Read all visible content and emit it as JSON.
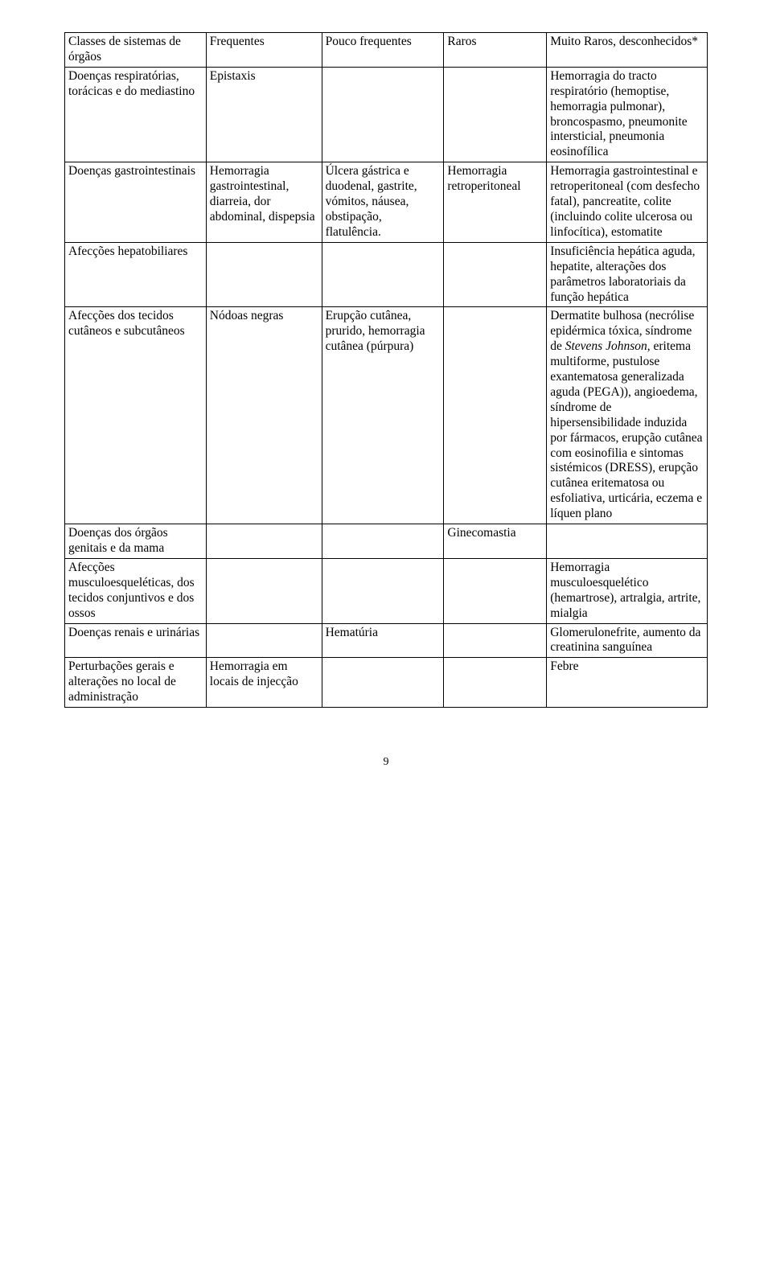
{
  "table": {
    "columns": [
      "Classes de sistemas de órgãos",
      "Frequentes",
      "Pouco frequentes",
      "Raros",
      "Muito Raros, desconhecidos*"
    ],
    "rows": [
      {
        "c0": "Doenças respiratórias, torácicas e do mediastino",
        "c1": "Epistaxis",
        "c2": "",
        "c3": "",
        "c4": "Hemorragia do tracto respiratório (hemoptise, hemorragia pulmonar), broncospasmo, pneumonite intersticial, pneumonia eosinofílica"
      },
      {
        "c0": "Doenças gastrointestinais",
        "c1": "Hemorragia gastrointestinal, diarreia, dor abdominal, dispepsia",
        "c2": "Úlcera gástrica e duodenal, gastrite, vómitos, náusea, obstipação, flatulência.",
        "c3": "Hemorragia retroperitoneal",
        "c4": "Hemorragia gastrointestinal e retroperitoneal (com desfecho fatal), pancreatite, colite (incluindo colite ulcerosa ou linfocítica), estomatite"
      },
      {
        "c0": "Afecções hepatobiliares",
        "c1": "",
        "c2": "",
        "c3": "",
        "c4": "Insuficiência hepática aguda, hepatite, alterações dos parâmetros laboratoriais da função hepática"
      },
      {
        "c0": "Afecções dos tecidos cutâneos e subcutâneos",
        "c1": "Nódoas negras",
        "c2": "Erupção cutânea, prurido, hemorragia cutânea (púrpura)",
        "c3": "",
        "c4_parts": {
          "a": "Dermatite bulhosa (necrólise epidérmica tóxica, síndrome de ",
          "b": "Stevens Johnson",
          "c": ", eritema multiforme, pustulose exantematosa generalizada aguda (PEGA)), angioedema, síndrome de hipersensibilidade induzida por fármacos, erupção cutânea com eosinofilia e sintomas sistémicos (DRESS), erupção cutânea eritematosa ou esfoliativa, urticária, eczema e líquen plano"
        }
      },
      {
        "c0": "Doenças dos órgãos genitais e da mama",
        "c1": "",
        "c2": "",
        "c3": "Ginecomastia",
        "c4": ""
      },
      {
        "c0": "Afecções musculoesqueléticas, dos tecidos conjuntivos e dos ossos",
        "c1": "",
        "c2": "",
        "c3": "",
        "c4": "Hemorragia musculoesquelético (hemartrose), artralgia, artrite, mialgia"
      },
      {
        "c0": "Doenças renais e urinárias",
        "c1": "",
        "c2": "Hematúria",
        "c3": "",
        "c4": "Glomerulonefrite, aumento da creatinina sanguínea"
      },
      {
        "c0": "Perturbações gerais e alterações no local de administração",
        "c1": "Hemorragia em locais de injecção",
        "c2": "",
        "c3": "",
        "c4": "Febre"
      }
    ]
  },
  "page_number": "9"
}
